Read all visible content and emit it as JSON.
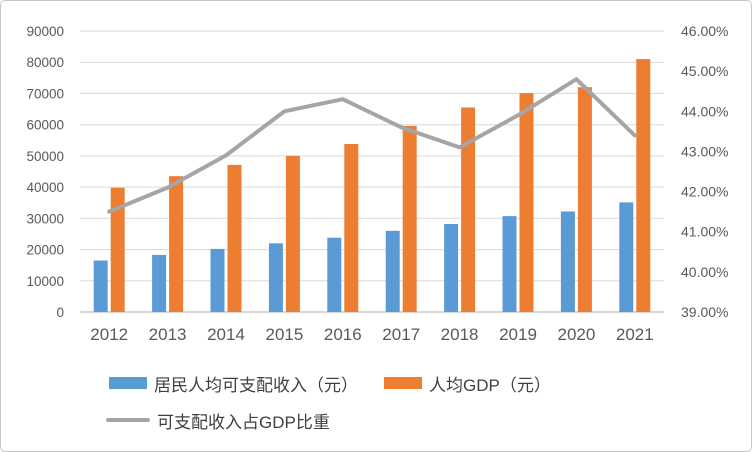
{
  "chart_data": {
    "type": "combo-bar-line",
    "categories": [
      "2012",
      "2013",
      "2014",
      "2015",
      "2016",
      "2017",
      "2018",
      "2019",
      "2020",
      "2021"
    ],
    "series": [
      {
        "name": "居民人均可支配收入（元）",
        "type": "bar",
        "axis": "left",
        "color": "#5B9BD5",
        "values": [
          16500,
          18300,
          20200,
          22000,
          23800,
          26000,
          28200,
          30700,
          32200,
          35100
        ]
      },
      {
        "name": "人均GDP（元）",
        "type": "bar",
        "axis": "left",
        "color": "#ED7D31",
        "values": [
          39800,
          43500,
          47100,
          50000,
          53800,
          59600,
          65500,
          70100,
          72000,
          81000
        ]
      },
      {
        "name": "可支配收入占GDP比重",
        "type": "line",
        "axis": "right",
        "color": "#A5A5A5",
        "values": [
          41.5,
          42.1,
          42.9,
          44.0,
          44.3,
          43.6,
          43.1,
          43.9,
          44.8,
          43.4
        ]
      }
    ],
    "left_axis": {
      "min": 0,
      "max": 90000,
      "step": 10000,
      "ticks": [
        "90000",
        "80000",
        "70000",
        "60000",
        "50000",
        "40000",
        "30000",
        "20000",
        "10000",
        "0"
      ]
    },
    "right_axis": {
      "min": 39,
      "max": 46,
      "step": 1,
      "ticks": [
        "46.00%",
        "45.00%",
        "44.00%",
        "43.00%",
        "42.00%",
        "41.00%",
        "40.00%",
        "39.00%"
      ]
    },
    "grid": true,
    "legend_position": "bottom-left"
  },
  "colors": {
    "gridline": "#D9D9D9",
    "axis_line": "#C9C9C9",
    "axis_text": "#595959",
    "legend_text": "#404040",
    "border": "#C6C6C6",
    "background": "#FFFFFF"
  }
}
